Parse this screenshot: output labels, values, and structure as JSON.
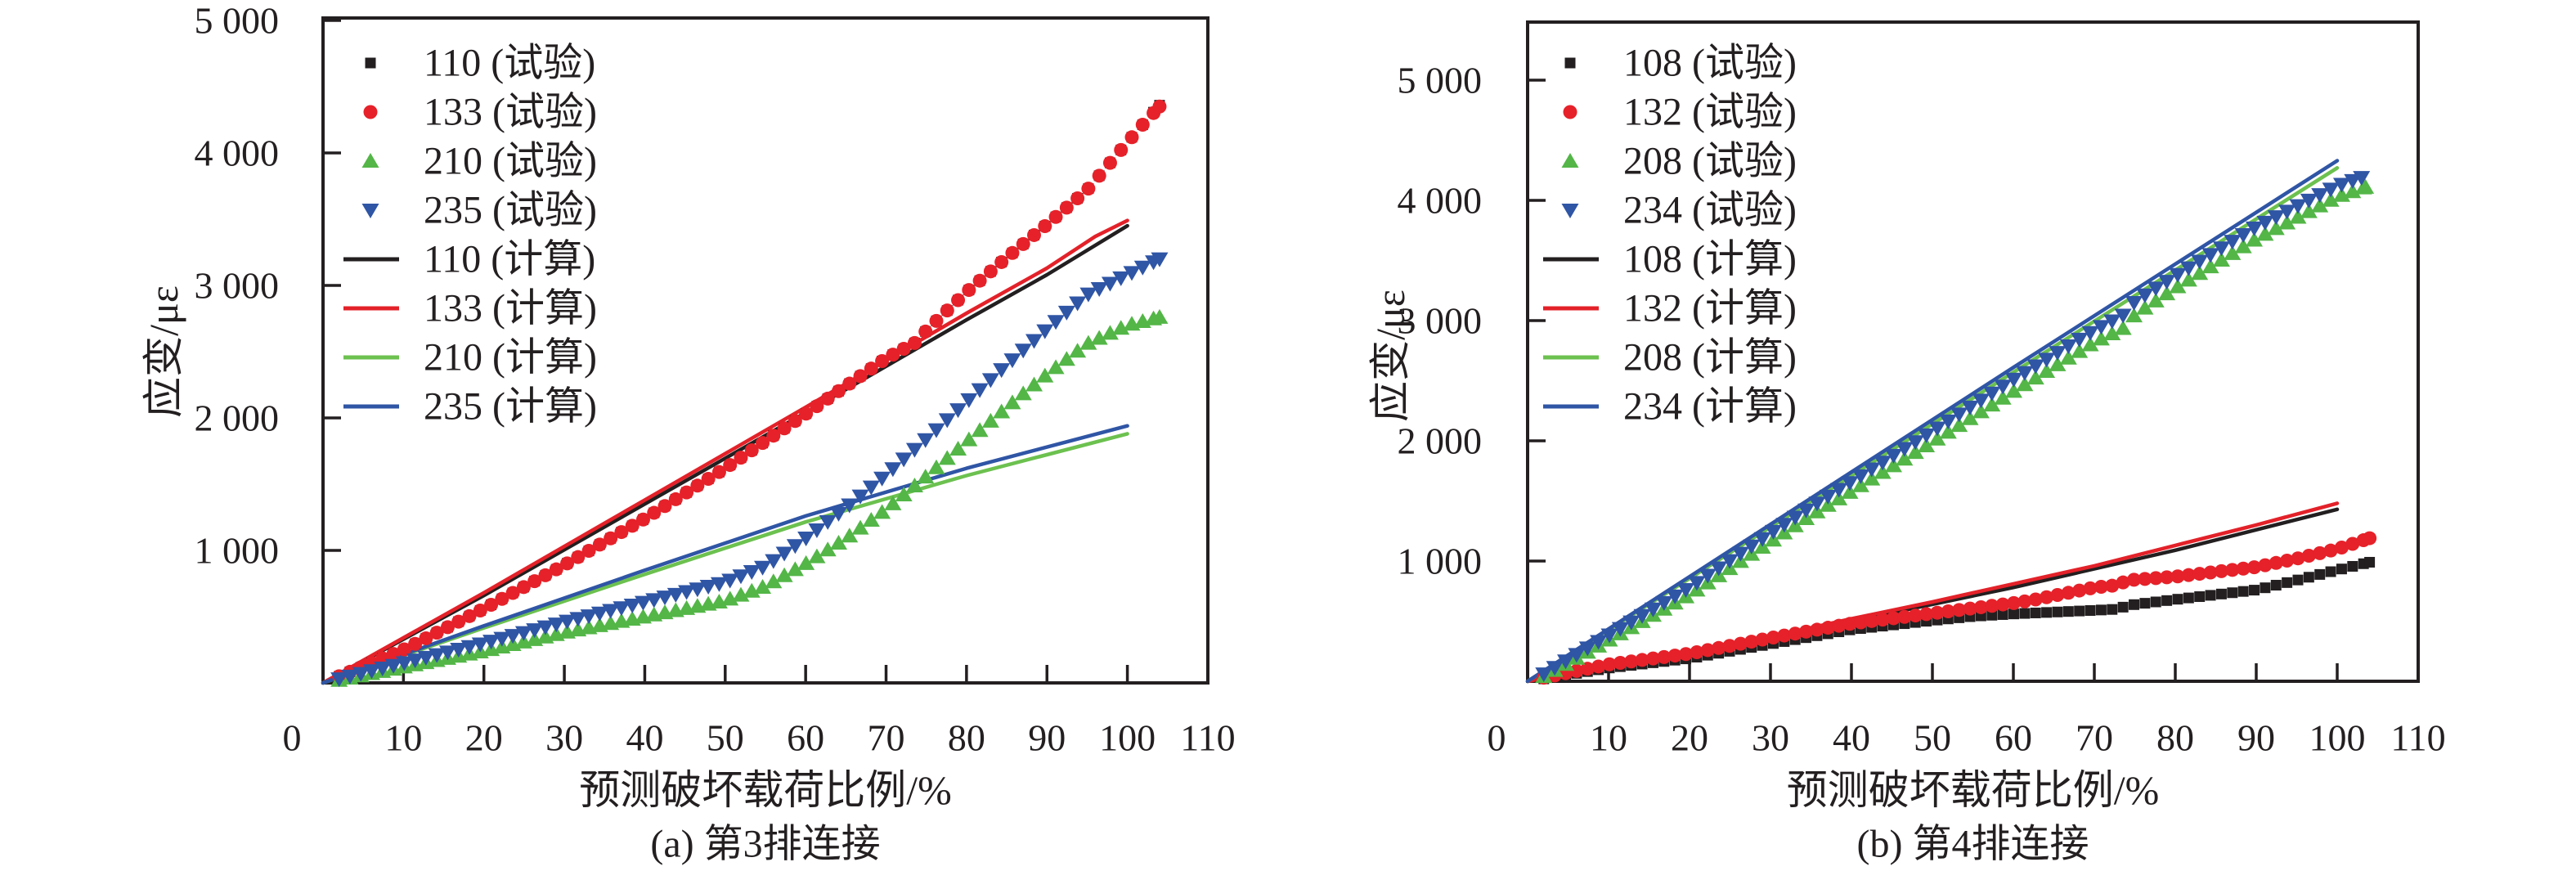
{
  "figure": {
    "background": "#ffffff",
    "axis_color": "#231f20",
    "palette": {
      "black": "#231f20",
      "red": "#e62129",
      "green": "#53b647",
      "green_line": "#6cc14f",
      "blue": "#2f55a5"
    }
  },
  "chart_data": [
    {
      "type": "scatter",
      "panel_label": "(a) 第3排连接",
      "xlabel": "预测破坏载荷比例/%",
      "ylabel": "应变/με",
      "xlim": [
        0,
        110
      ],
      "ylim": [
        0,
        5020
      ],
      "xticks": [
        0,
        10,
        20,
        30,
        40,
        50,
        60,
        70,
        80,
        90,
        100,
        110
      ],
      "yticks": [
        {
          "value": 1000,
          "label": "1 000"
        },
        {
          "value": 2000,
          "label": "2 000"
        },
        {
          "value": 3000,
          "label": "3 000"
        },
        {
          "value": 4000,
          "label": "4 000"
        },
        {
          "value": 5000,
          "label": "5 000"
        }
      ],
      "origin_label": "0",
      "grid": false,
      "legend_position": "top-left-inside",
      "legend": [
        {
          "label": "110 (试验)",
          "kind": "marker",
          "marker": "square",
          "color": "#231f20"
        },
        {
          "label": "133 (试验)",
          "kind": "marker",
          "marker": "circle",
          "color": "#e62129"
        },
        {
          "label": "210 (试验)",
          "kind": "marker",
          "marker": "triangle-up",
          "color": "#53b647"
        },
        {
          "label": "235 (试验)",
          "kind": "marker",
          "marker": "triangle-down",
          "color": "#2f55a5"
        },
        {
          "label": "110 (计算)",
          "kind": "line",
          "color": "#231f20"
        },
        {
          "label": "133 (计算)",
          "kind": "line",
          "color": "#e32129"
        },
        {
          "label": "210 (计算)",
          "kind": "line",
          "color": "#6cc14f"
        },
        {
          "label": "235 (计算)",
          "kind": "line",
          "color": "#2f55a5"
        }
      ],
      "series": [
        {
          "name": "110 (计算)",
          "kind": "line",
          "color": "#231f20",
          "points": [
            [
              0,
              0
            ],
            [
              20,
              660
            ],
            [
              40,
              1350
            ],
            [
              60,
              2040
            ],
            [
              80,
              2740
            ],
            [
              90,
              3080
            ],
            [
              100,
              3450
            ]
          ]
        },
        {
          "name": "133 (计算)",
          "kind": "line",
          "color": "#e32129",
          "points": [
            [
              0,
              0
            ],
            [
              20,
              680
            ],
            [
              40,
              1380
            ],
            [
              60,
              2080
            ],
            [
              80,
              2790
            ],
            [
              90,
              3130
            ],
            [
              96,
              3370
            ],
            [
              100,
              3490
            ]
          ]
        },
        {
          "name": "210 (计算)",
          "kind": "line",
          "color": "#6cc14f",
          "points": [
            [
              0,
              0
            ],
            [
              20,
              415
            ],
            [
              40,
              820
            ],
            [
              60,
              1215
            ],
            [
              80,
              1565
            ],
            [
              100,
              1880
            ]
          ]
        },
        {
          "name": "235 (计算)",
          "kind": "line",
          "color": "#2f55a5",
          "points": [
            [
              0,
              0
            ],
            [
              20,
              430
            ],
            [
              40,
              850
            ],
            [
              60,
              1260
            ],
            [
              80,
              1620
            ],
            [
              100,
              1940
            ]
          ]
        },
        {
          "name": "110 (试验)",
          "kind": "markers",
          "marker": "square",
          "color": "#231f20",
          "step": 1.35,
          "points": [
            [
              2,
              50
            ],
            [
              10,
              250
            ],
            [
              20,
              560
            ],
            [
              30,
              890
            ],
            [
              40,
              1240
            ],
            [
              50,
              1620
            ],
            [
              60,
              2030
            ],
            [
              70,
              2450
            ],
            [
              74,
              2580
            ],
            [
              75,
              2660
            ],
            [
              80,
              2950
            ],
            [
              85,
              3210
            ],
            [
              90,
              3460
            ],
            [
              95,
              3720
            ],
            [
              100,
              4080
            ],
            [
              102,
              4220
            ],
            [
              104,
              4360
            ]
          ]
        },
        {
          "name": "133 (试验)",
          "kind": "markers",
          "marker": "circle",
          "color": "#e62129",
          "step": 1.35,
          "points": [
            [
              2,
              50
            ],
            [
              10,
              250
            ],
            [
              20,
              560
            ],
            [
              30,
              890
            ],
            [
              40,
              1240
            ],
            [
              50,
              1620
            ],
            [
              60,
              2030
            ],
            [
              70,
              2450
            ],
            [
              74,
              2580
            ],
            [
              75,
              2660
            ],
            [
              80,
              2950
            ],
            [
              85,
              3210
            ],
            [
              90,
              3460
            ],
            [
              95,
              3720
            ],
            [
              100,
              4080
            ],
            [
              102,
              4220
            ],
            [
              104,
              4350
            ]
          ]
        },
        {
          "name": "210 (试验)",
          "kind": "markers",
          "marker": "triangle-up",
          "color": "#53b647",
          "step": 1.35,
          "points": [
            [
              2,
              20
            ],
            [
              10,
              120
            ],
            [
              20,
              240
            ],
            [
              30,
              380
            ],
            [
              40,
              500
            ],
            [
              50,
              620
            ],
            [
              55,
              730
            ],
            [
              60,
              900
            ],
            [
              65,
              1090
            ],
            [
              70,
              1310
            ],
            [
              75,
              1560
            ],
            [
              80,
              1820
            ],
            [
              85,
              2080
            ],
            [
              90,
              2330
            ],
            [
              95,
              2560
            ],
            [
              100,
              2700
            ],
            [
              104,
              2760
            ]
          ]
        },
        {
          "name": "235 (试验)",
          "kind": "markers",
          "marker": "triangle-down",
          "color": "#2f55a5",
          "step": 1.35,
          "points": [
            [
              2,
              30
            ],
            [
              10,
              150
            ],
            [
              20,
              300
            ],
            [
              30,
              460
            ],
            [
              40,
              610
            ],
            [
              50,
              760
            ],
            [
              55,
              880
            ],
            [
              60,
              1090
            ],
            [
              65,
              1320
            ],
            [
              70,
              1570
            ],
            [
              75,
              1840
            ],
            [
              80,
              2120
            ],
            [
              85,
              2400
            ],
            [
              90,
              2670
            ],
            [
              95,
              2930
            ],
            [
              100,
              3080
            ],
            [
              102,
              3140
            ],
            [
              104,
              3200
            ]
          ]
        }
      ]
    },
    {
      "type": "scatter",
      "panel_label": "(b) 第4排连接",
      "xlabel": "预测破坏载荷比例/%",
      "ylabel": "应变/με",
      "xlim": [
        0,
        110
      ],
      "ylim": [
        0,
        5480
      ],
      "xticks": [
        0,
        10,
        20,
        30,
        40,
        50,
        60,
        70,
        80,
        90,
        100,
        110
      ],
      "yticks": [
        {
          "value": 1000,
          "label": "1 000"
        },
        {
          "value": 2000,
          "label": "2 000"
        },
        {
          "value": 3000,
          "label": "3 000"
        },
        {
          "value": 4000,
          "label": "4 000"
        },
        {
          "value": 5000,
          "label": "5 000"
        }
      ],
      "origin_label": "0",
      "grid": false,
      "legend_position": "top-left-inside",
      "legend": [
        {
          "label": "108 (试验)",
          "kind": "marker",
          "marker": "square",
          "color": "#231f20"
        },
        {
          "label": "132 (试验)",
          "kind": "marker",
          "marker": "circle",
          "color": "#e62129"
        },
        {
          "label": "208 (试验)",
          "kind": "marker",
          "marker": "triangle-up",
          "color": "#53b647"
        },
        {
          "label": "234 (试验)",
          "kind": "marker",
          "marker": "triangle-down",
          "color": "#2f55a5"
        },
        {
          "label": "108 (计算)",
          "kind": "line",
          "color": "#231f20"
        },
        {
          "label": "132 (计算)",
          "kind": "line",
          "color": "#e32129"
        },
        {
          "label": "208 (计算)",
          "kind": "line",
          "color": "#6cc14f"
        },
        {
          "label": "234 (计算)",
          "kind": "line",
          "color": "#2f55a5"
        }
      ],
      "series": [
        {
          "name": "108 (计算)",
          "kind": "line",
          "color": "#231f20",
          "points": [
            [
              0,
              0
            ],
            [
              20,
              230
            ],
            [
              40,
              500
            ],
            [
              60,
              780
            ],
            [
              80,
              1090
            ],
            [
              100,
              1430
            ]
          ]
        },
        {
          "name": "132 (计算)",
          "kind": "line",
          "color": "#e32129",
          "points": [
            [
              0,
              0
            ],
            [
              10,
              120
            ],
            [
              20,
              240
            ],
            [
              30,
              370
            ],
            [
              40,
              520
            ],
            [
              50,
              660
            ],
            [
              60,
              810
            ],
            [
              70,
              960
            ],
            [
              80,
              1130
            ],
            [
              90,
              1300
            ],
            [
              100,
              1480
            ]
          ]
        },
        {
          "name": "208 (计算)",
          "kind": "line",
          "color": "#6cc14f",
          "points": [
            [
              0,
              0
            ],
            [
              20,
              855
            ],
            [
              40,
              1710
            ],
            [
              60,
              2570
            ],
            [
              80,
              3420
            ],
            [
              100,
              4270
            ]
          ]
        },
        {
          "name": "234 (计算)",
          "kind": "line",
          "color": "#2f55a5",
          "points": [
            [
              0,
              0
            ],
            [
              20,
              870
            ],
            [
              40,
              1740
            ],
            [
              60,
              2610
            ],
            [
              80,
              3470
            ],
            [
              100,
              4330
            ]
          ]
        },
        {
          "name": "108 (试验)",
          "kind": "markers",
          "marker": "square",
          "color": "#231f20",
          "step": 1.35,
          "points": [
            [
              2,
              20
            ],
            [
              10,
              110
            ],
            [
              20,
              190
            ],
            [
              30,
              310
            ],
            [
              40,
              430
            ],
            [
              50,
              505
            ],
            [
              55,
              540
            ],
            [
              60,
              560
            ],
            [
              70,
              590
            ],
            [
              73,
              600
            ],
            [
              74,
              630
            ],
            [
              80,
              680
            ],
            [
              85,
              720
            ],
            [
              90,
              760
            ],
            [
              95,
              840
            ],
            [
              100,
              925
            ],
            [
              104,
              990
            ]
          ]
        },
        {
          "name": "132 (试验)",
          "kind": "markers",
          "marker": "circle",
          "color": "#e62129",
          "step": 1.35,
          "points": [
            [
              2,
              30
            ],
            [
              10,
              140
            ],
            [
              20,
              230
            ],
            [
              30,
              360
            ],
            [
              40,
              480
            ],
            [
              50,
              565
            ],
            [
              60,
              650
            ],
            [
              62,
              670
            ],
            [
              70,
              780
            ],
            [
              73,
              800
            ],
            [
              74,
              840
            ],
            [
              80,
              870
            ],
            [
              90,
              950
            ],
            [
              95,
              1020
            ],
            [
              100,
              1100
            ],
            [
              104,
              1190
            ]
          ]
        },
        {
          "name": "208 (试验)",
          "kind": "markers",
          "marker": "triangle-up",
          "color": "#53b647",
          "step": 1.35,
          "points": [
            [
              2,
              40
            ],
            [
              10,
              340
            ],
            [
              20,
              720
            ],
            [
              30,
              1160
            ],
            [
              35,
              1380
            ],
            [
              40,
              1580
            ],
            [
              50,
              1990
            ],
            [
              60,
              2410
            ],
            [
              70,
              2820
            ],
            [
              74,
              2950
            ],
            [
              75,
              3050
            ],
            [
              80,
              3270
            ],
            [
              90,
              3680
            ],
            [
              100,
              4030
            ],
            [
              103.5,
              4110
            ]
          ]
        },
        {
          "name": "234 (试验)",
          "kind": "markers",
          "marker": "triangle-down",
          "color": "#2f55a5",
          "step": 1.35,
          "points": [
            [
              2,
              60
            ],
            [
              10,
              380
            ],
            [
              20,
              780
            ],
            [
              30,
              1230
            ],
            [
              35,
              1450
            ],
            [
              40,
              1660
            ],
            [
              50,
              2080
            ],
            [
              60,
              2510
            ],
            [
              70,
              2920
            ],
            [
              74,
              3060
            ],
            [
              75,
              3160
            ],
            [
              80,
              3370
            ],
            [
              90,
              3780
            ],
            [
              100,
              4120
            ],
            [
              103,
              4190
            ]
          ]
        }
      ]
    }
  ]
}
